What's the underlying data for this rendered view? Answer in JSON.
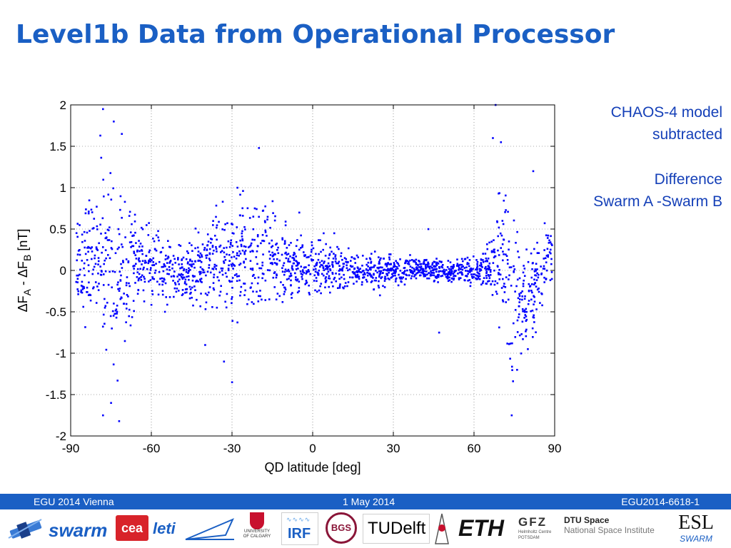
{
  "slide": {
    "title": "Level1b Data from Operational Processor"
  },
  "annotation": {
    "line1": "CHAOS-4 model",
    "line2": "subtracted",
    "line3": "Difference",
    "line4": "Swarm A -Swarm B"
  },
  "footer": {
    "left": "EGU 2014 Vienna",
    "center": "1 May 2014",
    "right": "EGU2014-6618-1"
  },
  "logos": {
    "swarm": "swarm",
    "cea": "cea",
    "leti": "leti",
    "calgary": "UNIVERSITY OF CALGARY",
    "irf": "IRF",
    "bgs": "BGS",
    "tudelft": "TUDelft",
    "eth": "ETH",
    "gfz": "GFZ",
    "gfz_sub": "Helmholtz Centre POTSDAM",
    "dtu_title": "DTU Space",
    "dtu_sub": "National Space Institute",
    "esl": "ESL",
    "esl_sub": "SWARM"
  },
  "colors": {
    "title": "#1a5fc4",
    "annotation": "#1540b8",
    "points": "#0000ff",
    "footer": "#1a5fc4"
  },
  "chart_data": {
    "type": "scatter",
    "title": "",
    "xlabel": "QD latitude [deg]",
    "ylabel_parts": [
      "ΔF",
      "A",
      " - ΔF",
      "B",
      " [nT]"
    ],
    "xlim": [
      -90,
      90
    ],
    "ylim": [
      -2,
      2
    ],
    "xticks": [
      -90,
      -60,
      -30,
      0,
      30,
      60,
      90
    ],
    "yticks": [
      -2,
      -1.5,
      -1,
      -0.5,
      0,
      0.5,
      1,
      1.5,
      2
    ],
    "xtick_labels": [
      "-90",
      "-60",
      "-30",
      "0",
      "30",
      "60",
      "90"
    ],
    "ytick_labels": [
      "-2",
      "-1.5",
      "-1",
      "-0.5",
      "0",
      "0.5",
      "1",
      "1.5",
      "2"
    ],
    "grid": true,
    "grid_style": "dotted",
    "marker": "small blue dots",
    "series": [
      {
        "name": "Swarm A - Swarm B",
        "envelope": [
          {
            "x": -88,
            "mean": 0.0,
            "spread": 0.7
          },
          {
            "x": -82,
            "mean": 0.1,
            "spread": 1.0
          },
          {
            "x": -78,
            "mean": 0.1,
            "spread": 1.6
          },
          {
            "x": -74,
            "mean": 0.0,
            "spread": 1.7
          },
          {
            "x": -70,
            "mean": 0.05,
            "spread": 1.3
          },
          {
            "x": -65,
            "mean": 0.1,
            "spread": 0.8
          },
          {
            "x": -60,
            "mean": 0.05,
            "spread": 0.6
          },
          {
            "x": -55,
            "mean": 0.0,
            "spread": 0.55
          },
          {
            "x": -50,
            "mean": 0.0,
            "spread": 0.5
          },
          {
            "x": -45,
            "mean": 0.0,
            "spread": 0.55
          },
          {
            "x": -40,
            "mean": 0.05,
            "spread": 0.7
          },
          {
            "x": -35,
            "mean": 0.1,
            "spread": 0.85
          },
          {
            "x": -30,
            "mean": 0.15,
            "spread": 0.9
          },
          {
            "x": -25,
            "mean": 0.2,
            "spread": 0.95
          },
          {
            "x": -20,
            "mean": 0.25,
            "spread": 1.1
          },
          {
            "x": -15,
            "mean": 0.2,
            "spread": 0.85
          },
          {
            "x": -10,
            "mean": 0.1,
            "spread": 0.6
          },
          {
            "x": -5,
            "mean": 0.05,
            "spread": 0.45
          },
          {
            "x": 0,
            "mean": 0.05,
            "spread": 0.45
          },
          {
            "x": 5,
            "mean": 0.05,
            "spread": 0.4
          },
          {
            "x": 10,
            "mean": 0.0,
            "spread": 0.35
          },
          {
            "x": 20,
            "mean": 0.0,
            "spread": 0.3
          },
          {
            "x": 30,
            "mean": 0.0,
            "spread": 0.25
          },
          {
            "x": 40,
            "mean": 0.0,
            "spread": 0.2
          },
          {
            "x": 50,
            "mean": 0.0,
            "spread": 0.2
          },
          {
            "x": 60,
            "mean": 0.0,
            "spread": 0.25
          },
          {
            "x": 66,
            "mean": 0.05,
            "spread": 0.5
          },
          {
            "x": 70,
            "mean": 0.2,
            "spread": 1.4
          },
          {
            "x": 74,
            "mean": -0.2,
            "spread": 1.4
          },
          {
            "x": 78,
            "mean": -0.4,
            "spread": 0.8
          },
          {
            "x": 82,
            "mean": -0.3,
            "spread": 0.8
          },
          {
            "x": 86,
            "mean": 0.1,
            "spread": 0.6
          },
          {
            "x": 90,
            "mean": 0.2,
            "spread": 0.3
          }
        ],
        "notable_points": [
          {
            "x": -78,
            "y": 1.95
          },
          {
            "x": -74,
            "y": 1.8
          },
          {
            "x": -71,
            "y": 1.65
          },
          {
            "x": -79,
            "y": 1.63
          },
          {
            "x": -72,
            "y": -1.82
          },
          {
            "x": -75,
            "y": -1.6
          },
          {
            "x": -78,
            "y": -1.75
          },
          {
            "x": -20,
            "y": 1.48
          },
          {
            "x": -28,
            "y": 1.0
          },
          {
            "x": -30,
            "y": -1.35
          },
          {
            "x": -33,
            "y": -1.1
          },
          {
            "x": -40,
            "y": -0.9
          },
          {
            "x": 67,
            "y": 1.6
          },
          {
            "x": 68,
            "y": 2.0
          },
          {
            "x": 70,
            "y": 1.55
          },
          {
            "x": 74,
            "y": -1.75
          },
          {
            "x": 76,
            "y": -1.2
          },
          {
            "x": 82,
            "y": 1.2
          },
          {
            "x": 80,
            "y": -0.95
          },
          {
            "x": 47,
            "y": -0.75
          },
          {
            "x": 43,
            "y": 0.5
          },
          {
            "x": 25,
            "y": -0.3
          },
          {
            "x": 8,
            "y": 0.45
          },
          {
            "x": -5,
            "y": 0.7
          }
        ]
      }
    ]
  }
}
